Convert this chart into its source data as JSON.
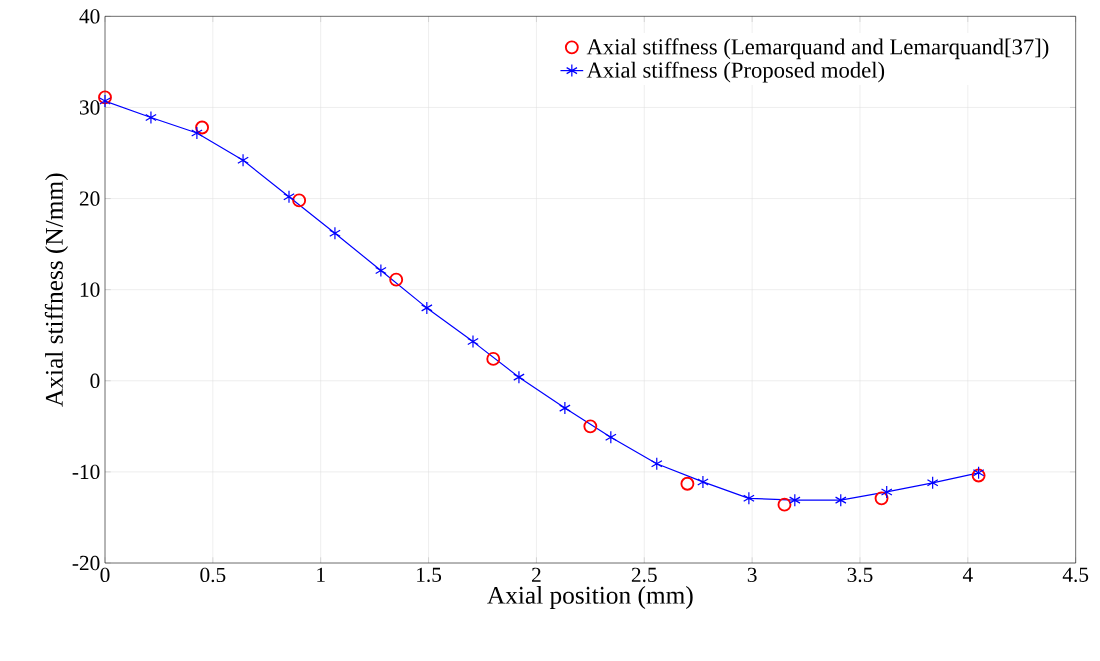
{
  "chart_data": {
    "type": "line",
    "xlabel": "Axial position (mm)",
    "ylabel": "Axial stiffness (N/mm)",
    "xlim": [
      0,
      4.5
    ],
    "ylim": [
      -20,
      40
    ],
    "xticks": [
      0,
      0.5,
      1,
      1.5,
      2,
      2.5,
      3,
      3.5,
      4,
      4.5
    ],
    "yticks": [
      -20,
      -10,
      0,
      10,
      20,
      30,
      40
    ],
    "grid": true,
    "legend": "top right",
    "series": [
      {
        "name": "Axial stiffness (Lemarquand and Lemarquand[37])",
        "type": "scatter",
        "marker": "circle",
        "color": "#ff0000",
        "x": [
          0,
          0.45,
          0.9,
          1.35,
          1.8,
          2.25,
          2.7,
          3.15,
          3.6,
          4.05
        ],
        "values": [
          31.1,
          27.8,
          19.8,
          11.1,
          2.4,
          -5.0,
          -11.3,
          -13.6,
          -12.9,
          -10.4
        ]
      },
      {
        "name": "Axial stiffness (Proposed model)",
        "type": "line",
        "marker": "cross",
        "line_style": "solid",
        "color": "#0000ff",
        "x": [
          0,
          0.213,
          0.426,
          0.64,
          0.853,
          1.066,
          1.279,
          1.492,
          1.706,
          1.919,
          2.132,
          2.345,
          2.558,
          2.772,
          2.985,
          3.198,
          3.411,
          3.624,
          3.837,
          4.05
        ],
        "values": [
          30.7,
          28.9,
          27.2,
          24.2,
          20.2,
          16.2,
          12.1,
          8.0,
          4.3,
          0.4,
          -3.0,
          -6.2,
          -9.1,
          -11.1,
          -12.9,
          -13.1,
          -13.1,
          -12.2,
          -11.2,
          -10.1
        ]
      }
    ]
  }
}
